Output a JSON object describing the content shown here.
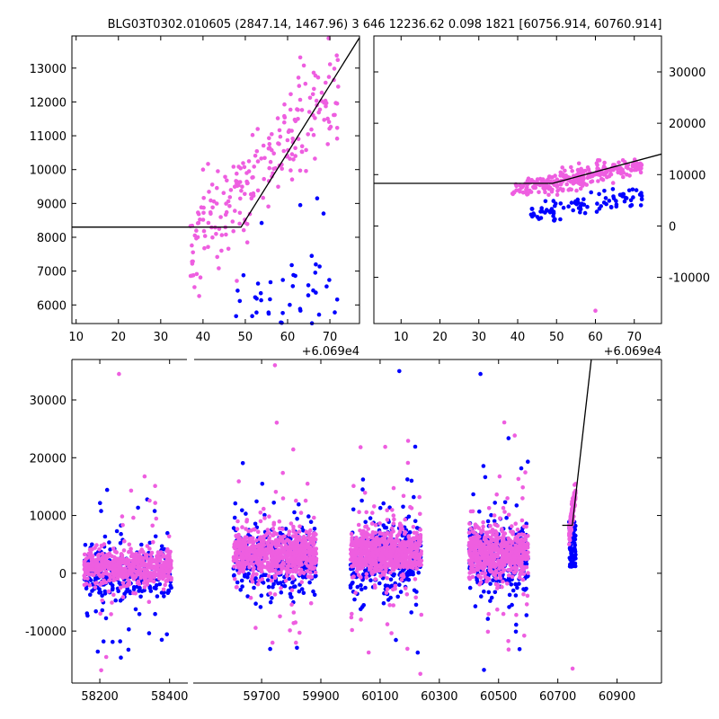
{
  "title": "BLG03T0302.010605 (2847.14, 1467.96)  3 646 12236.62 0.098 1821 [60756.914, 60760.914]",
  "colors": {
    "series_a": "#0000ff",
    "series_b": "#ee5ee0",
    "model": "#000000",
    "axes": "#000000",
    "background": "#ffffff"
  },
  "chart_data": [
    {
      "id": "zoom-left",
      "type": "scatter",
      "x_offset_label": "+6.069e4",
      "xlim": [
        9,
        77
      ],
      "ylim": [
        5450,
        13950
      ],
      "xticks": [
        10,
        20,
        30,
        40,
        50,
        60,
        70
      ],
      "yticks": [
        6000,
        7000,
        8000,
        9000,
        10000,
        11000,
        12000,
        13000
      ],
      "ytick_side": "left",
      "model_line": [
        [
          9,
          8300
        ],
        [
          49,
          8300
        ],
        [
          77,
          13900
        ]
      ],
      "series": [
        {
          "color_key": "series_b",
          "cluster": {
            "x": [
              37,
              72
            ],
            "y_base": 7600,
            "slope": 145,
            "y_scatter": 1400,
            "n": 230
          }
        },
        {
          "color_key": "series_a",
          "cluster": {
            "x": [
              47,
              72
            ],
            "y_base": 5600,
            "y_scatter": 1900,
            "n": 70
          }
        }
      ],
      "extra_points": [
        {
          "color_key": "series_a",
          "x": 67,
          "y": 9150
        },
        {
          "color_key": "series_a",
          "x": 68.5,
          "y": 8700
        },
        {
          "color_key": "series_a",
          "x": 63,
          "y": 8950
        },
        {
          "color_key": "series_b",
          "x": 40,
          "y": 10000
        }
      ]
    },
    {
      "id": "zoom-right",
      "type": "scatter",
      "x_offset_label": "+6.069e4",
      "xlim": [
        3,
        77
      ],
      "ylim": [
        -19000,
        37000
      ],
      "xticks": [
        10,
        20,
        30,
        40,
        50,
        60,
        70
      ],
      "yticks": [
        -10000,
        0,
        10000,
        20000,
        30000
      ],
      "ytick_side": "right",
      "model_line": [
        [
          3,
          8300
        ],
        [
          49,
          8300
        ],
        [
          77,
          14000
        ]
      ],
      "series": [
        {
          "color_key": "series_b",
          "cluster": {
            "x": [
              38,
              72
            ],
            "y_base": 6800,
            "slope": 150,
            "y_scatter": 1800,
            "n": 260
          }
        },
        {
          "color_key": "series_a",
          "cluster": {
            "x": [
              43,
              72
            ],
            "y_base": 2600,
            "slope": 110,
            "y_scatter": 2200,
            "n": 90
          }
        }
      ],
      "extra_points": [
        {
          "color_key": "series_b",
          "x": 60,
          "y": -16500
        }
      ]
    },
    {
      "id": "full",
      "type": "scatter",
      "xlim": [
        58120,
        61050
      ],
      "ylim": [
        -19000,
        37000
      ],
      "xticks": [
        58200,
        58400,
        59700,
        59900,
        60100,
        60300,
        60500,
        60700,
        60900
      ],
      "yticks": [
        -10000,
        0,
        10000,
        20000,
        30000
      ],
      "ytick_side": "left",
      "axis_break": true,
      "model_line": [
        [
          60715,
          8300
        ],
        [
          60749,
          8300
        ],
        [
          60813,
          37000
        ]
      ],
      "seasons": [
        {
          "x": [
            58155,
            58405
          ],
          "center": 1000,
          "spread": 1500,
          "outlier_top": 34500,
          "n_blue": 320,
          "n_pink": 600
        },
        {
          "x": [
            59605,
            59885
          ],
          "center": 3500,
          "spread": 2000,
          "outlier_top": 36000,
          "n_blue": 380,
          "n_pink": 700
        },
        {
          "x": [
            60000,
            60240
          ],
          "center": 3500,
          "spread": 2000,
          "outlier_top": 35000,
          "n_blue": 380,
          "n_pink": 700
        },
        {
          "x": [
            60400,
            60600
          ],
          "center": 3500,
          "spread": 2000,
          "outlier_top": 34500,
          "n_blue": 340,
          "n_pink": 620
        }
      ],
      "recent_cluster": {
        "x": [
          60738,
          60760
        ],
        "blue_y": [
          1000,
          9000
        ],
        "pink_y": [
          6500,
          14500
        ],
        "n_blue": 60,
        "n_pink": 150
      },
      "extra_points": [
        {
          "color_key": "series_b",
          "x": 60750,
          "y": -16500
        },
        {
          "color_key": "series_b",
          "x": 58255,
          "y": 34500
        },
        {
          "color_key": "series_b",
          "x": 59745,
          "y": 36000
        },
        {
          "color_key": "series_a",
          "x": 60165,
          "y": 35000
        },
        {
          "color_key": "series_a",
          "x": 60439,
          "y": 34500
        }
      ]
    }
  ]
}
